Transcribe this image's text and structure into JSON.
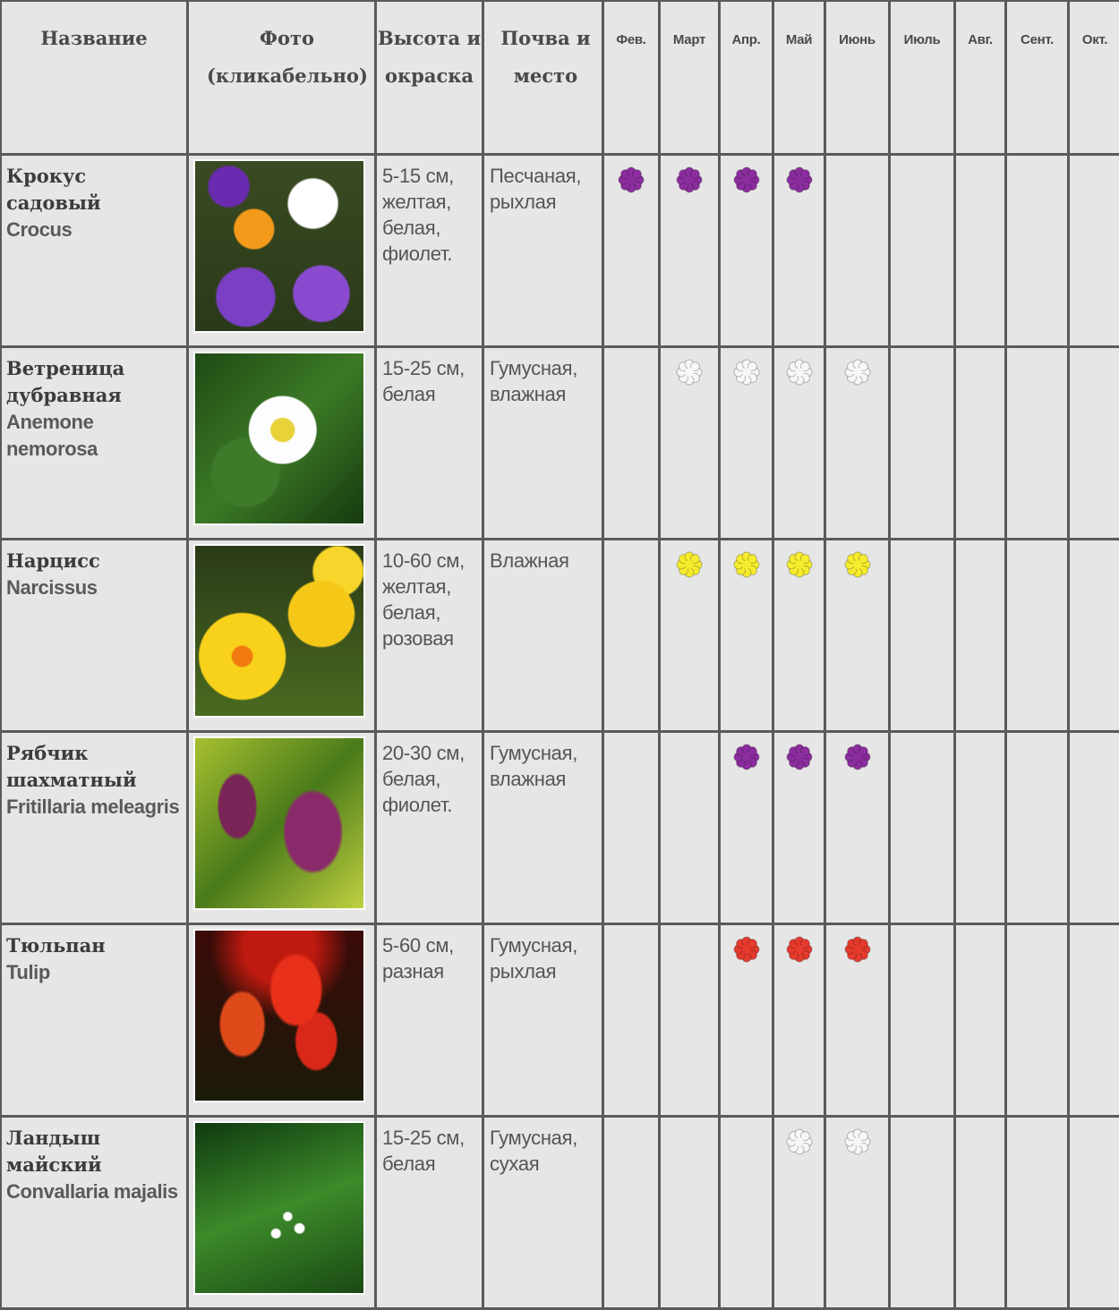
{
  "header": {
    "name": "Название",
    "photo": "Фото (кликабельно)",
    "height": "Высота и окраска",
    "soil": "Почва и место",
    "months": [
      "Фев.",
      "Март",
      "Апр.",
      "Май",
      "Июнь",
      "Июль",
      "Авг.",
      "Сент.",
      "Окт."
    ]
  },
  "colors": {
    "purple": "#8b2d9e",
    "white": "#f7f7f7",
    "yellow": "#f6ec2e",
    "red": "#e53a2c"
  },
  "rows": [
    {
      "name": "Крокус садовый",
      "latin": "Crocus",
      "height": "5-15 см, желтая, белая, фиолет.",
      "soil": "Песчаная, рыхлая",
      "photo": "crocus-photo",
      "bloom_color": "purple",
      "bloom_months": [
        "Фев.",
        "Март",
        "Апр.",
        "Май"
      ]
    },
    {
      "name": "Ветреница дубравная",
      "latin": "Anemone nemorosa",
      "height": "15-25 см, белая",
      "soil": "Гумусная, влажная",
      "photo": "anemone-photo",
      "bloom_color": "white",
      "bloom_months": [
        "Март",
        "Апр.",
        "Май",
        "Июнь"
      ]
    },
    {
      "name": "Нарцисс",
      "latin": "Narcissus",
      "height": "10-60 см, желтая, белая, розовая",
      "soil": "Влажная",
      "photo": "narcissus-photo",
      "bloom_color": "yellow",
      "bloom_months": [
        "Март",
        "Апр.",
        "Май",
        "Июнь"
      ]
    },
    {
      "name": "Рябчик шахматный",
      "latin": "Fritillaria meleagris",
      "height": "20-30 см, белая, фиолет.",
      "soil": "Гумусная, влажная",
      "photo": "fritillaria-photo",
      "bloom_color": "purple",
      "bloom_months": [
        "Апр.",
        "Май",
        "Июнь"
      ]
    },
    {
      "name": "Тюльпан",
      "latin": "Tulip",
      "height": "5-60 см, разная",
      "soil": "Гумусная, рыхлая",
      "photo": "tulip-photo",
      "bloom_color": "red",
      "bloom_months": [
        "Апр.",
        "Май",
        "Июнь"
      ]
    },
    {
      "name": "Ландыш майский",
      "latin": "Convallaria majalis",
      "height": "15-25 см, белая",
      "soil": "Гумусная, сухая",
      "photo": "lily-of-the-valley-photo",
      "bloom_color": "white",
      "bloom_months": [
        "Май",
        "Июнь"
      ]
    }
  ]
}
